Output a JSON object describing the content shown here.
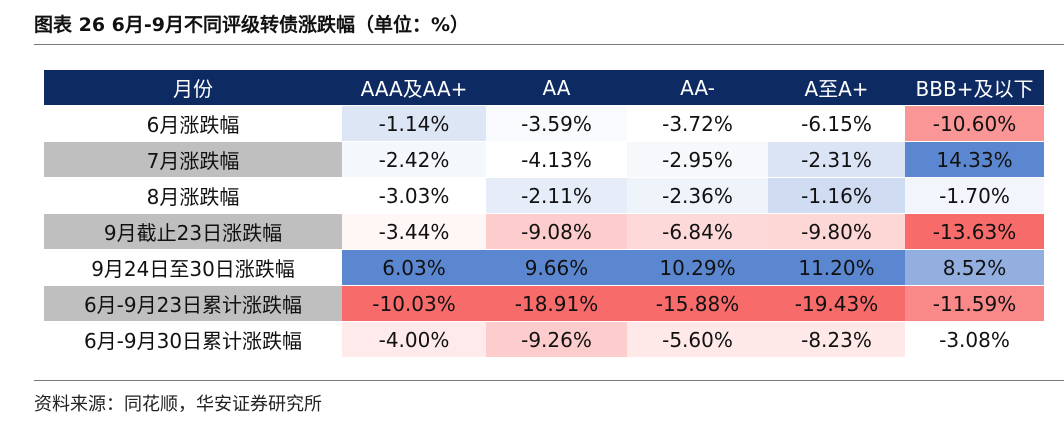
{
  "figure": {
    "title": "图表 26 6月-9月不同评级转债涨跌幅（单位：%）",
    "source": "资料来源：同花顺，华安证券研究所"
  },
  "colors": {
    "header_bg": "#0e2a63",
    "label_shade": "#bfbfbf",
    "label_plain": "#ffffff",
    "positive_extreme": "#f86b6b",
    "negative_extreme": "#5b87d0",
    "neutral": "#ffffff"
  },
  "chart_data": {
    "type": "heatmap",
    "title": "图表 26 6月-9月不同评级转债涨跌幅（单位：%）",
    "header_label": "月份",
    "columns": [
      "AAA及AA+",
      "AA",
      "AA-",
      "A至A+",
      "BBB+及以下"
    ],
    "rows": [
      {
        "label": "6月涨跌幅",
        "shaded": false,
        "values": [
          "-1.14%",
          "-3.59%",
          "-3.72%",
          "-6.15%",
          "-10.60%"
        ],
        "nums": [
          -1.14,
          -3.59,
          -3.72,
          -6.15,
          -10.6
        ]
      },
      {
        "label": "7月涨跌幅",
        "shaded": true,
        "values": [
          "-2.42%",
          "-4.13%",
          "-2.95%",
          "-2.31%",
          "14.33%"
        ],
        "nums": [
          -2.42,
          -4.13,
          -2.95,
          -2.31,
          14.33
        ]
      },
      {
        "label": "8月涨跌幅",
        "shaded": false,
        "values": [
          "-3.03%",
          "-2.11%",
          "-2.36%",
          "-1.16%",
          "-1.70%"
        ],
        "nums": [
          -3.03,
          -2.11,
          -2.36,
          -1.16,
          -1.7
        ]
      },
      {
        "label": "9月截止23日涨跌幅",
        "shaded": true,
        "values": [
          "-3.44%",
          "-9.08%",
          "-6.84%",
          "-9.80%",
          "-13.63%"
        ],
        "nums": [
          -3.44,
          -9.08,
          -6.84,
          -9.8,
          -13.63
        ]
      },
      {
        "label": "9月24日至30日涨跌幅",
        "shaded": false,
        "values": [
          "6.03%",
          "9.66%",
          "10.29%",
          "11.20%",
          "8.52%"
        ],
        "nums": [
          6.03,
          9.66,
          10.29,
          11.2,
          8.52
        ]
      },
      {
        "label": "6月-9月23日累计涨跌幅",
        "shaded": true,
        "values": [
          "-10.03%",
          "-18.91%",
          "-15.88%",
          "-19.43%",
          "-11.59%"
        ],
        "nums": [
          -10.03,
          -18.91,
          -15.88,
          -19.43,
          -11.59
        ]
      },
      {
        "label": "6月-9月30日累计涨跌幅",
        "shaded": false,
        "values": [
          "-4.00%",
          "-9.26%",
          "-5.60%",
          "-8.23%",
          "-3.08%"
        ],
        "nums": [
          -4.0,
          -9.26,
          -5.6,
          -8.23,
          -3.08
        ]
      }
    ]
  }
}
